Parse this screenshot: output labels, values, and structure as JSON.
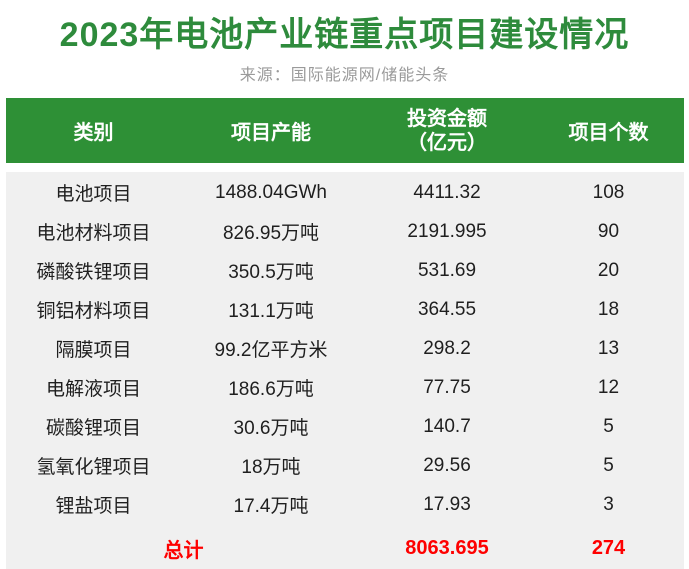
{
  "page": {
    "title": "2023年电池产业链重点项目建设情况",
    "source": "来源：国际能源网/储能头条"
  },
  "colors": {
    "title_green": "#2e8b3c",
    "header_green": "#2e9036",
    "body_gray": "#f0f0f0",
    "total_red": "#fe0000",
    "source_gray": "#9a9a9a",
    "body_text": "#1f1f1f"
  },
  "table": {
    "headers": [
      {
        "label": "类别"
      },
      {
        "label": "项目产能"
      },
      {
        "line1": "投资金额",
        "line2": "（亿元）"
      },
      {
        "label": "项目个数"
      }
    ],
    "rows": [
      {
        "category": "电池项目",
        "capacity": "1488.04GWh",
        "investment": "4411.32",
        "count": "108"
      },
      {
        "category": "电池材料项目",
        "capacity": "826.95万吨",
        "investment": "2191.995",
        "count": "90"
      },
      {
        "category": "磷酸铁锂项目",
        "capacity": "350.5万吨",
        "investment": "531.69",
        "count": "20"
      },
      {
        "category": "铜铝材料项目",
        "capacity": "131.1万吨",
        "investment": "364.55",
        "count": "18"
      },
      {
        "category": "隔膜项目",
        "capacity": "99.2亿平方米",
        "investment": "298.2",
        "count": "13"
      },
      {
        "category": "电解液项目",
        "capacity": "186.6万吨",
        "investment": "77.75",
        "count": "12"
      },
      {
        "category": "碳酸锂项目",
        "capacity": "30.6万吨",
        "investment": "140.7",
        "count": "5"
      },
      {
        "category": "氢氧化锂项目",
        "capacity": "18万吨",
        "investment": "29.56",
        "count": "5"
      },
      {
        "category": "锂盐项目",
        "capacity": "17.4万吨",
        "investment": "17.93",
        "count": "3"
      }
    ],
    "total": {
      "label": "总计",
      "investment": "8063.695",
      "count": "274"
    }
  },
  "chart_data": {
    "type": "table",
    "title": "2023年电池产业链重点项目建设情况",
    "source": "来源：国际能源网/储能头条",
    "columns": [
      "类别",
      "项目产能",
      "投资金额（亿元）",
      "项目个数"
    ],
    "rows": [
      [
        "电池项目",
        "1488.04GWh",
        4411.32,
        108
      ],
      [
        "电池材料项目",
        "826.95万吨",
        2191.995,
        90
      ],
      [
        "磷酸铁锂项目",
        "350.5万吨",
        531.69,
        20
      ],
      [
        "铜铝材料项目",
        "131.1万吨",
        364.55,
        18
      ],
      [
        "隔膜项目",
        "99.2亿平方米",
        298.2,
        13
      ],
      [
        "电解液项目",
        "186.6万吨",
        77.75,
        12
      ],
      [
        "碳酸锂项目",
        "30.6万吨",
        140.7,
        5
      ],
      [
        "氢氧化锂项目",
        "18万吨",
        29.56,
        5
      ],
      [
        "锂盐项目",
        "17.4万吨",
        17.93,
        3
      ]
    ],
    "total_row": [
      "总计",
      "",
      8063.695,
      274
    ]
  }
}
